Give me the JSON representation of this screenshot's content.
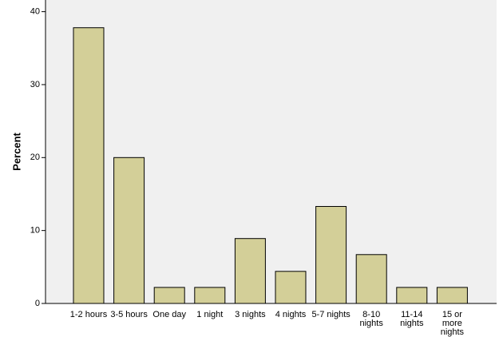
{
  "chart_data": {
    "type": "bar",
    "y_label": "Percent",
    "categories": [
      "1-2 hours",
      "3-5 hours",
      "One day",
      "1 night",
      "3 nights",
      "4 nights",
      "5-7 nights",
      "8-10 nights",
      "11-14 nights",
      "15 or more nights"
    ],
    "values": [
      37.8,
      20.0,
      2.2,
      2.2,
      8.9,
      4.4,
      13.3,
      6.7,
      2.2,
      2.2
    ],
    "color": "#d3cf98",
    "ylim": [
      0,
      41.6
    ],
    "yticks": [
      0,
      10,
      20,
      30,
      40
    ],
    "grid": false
  }
}
